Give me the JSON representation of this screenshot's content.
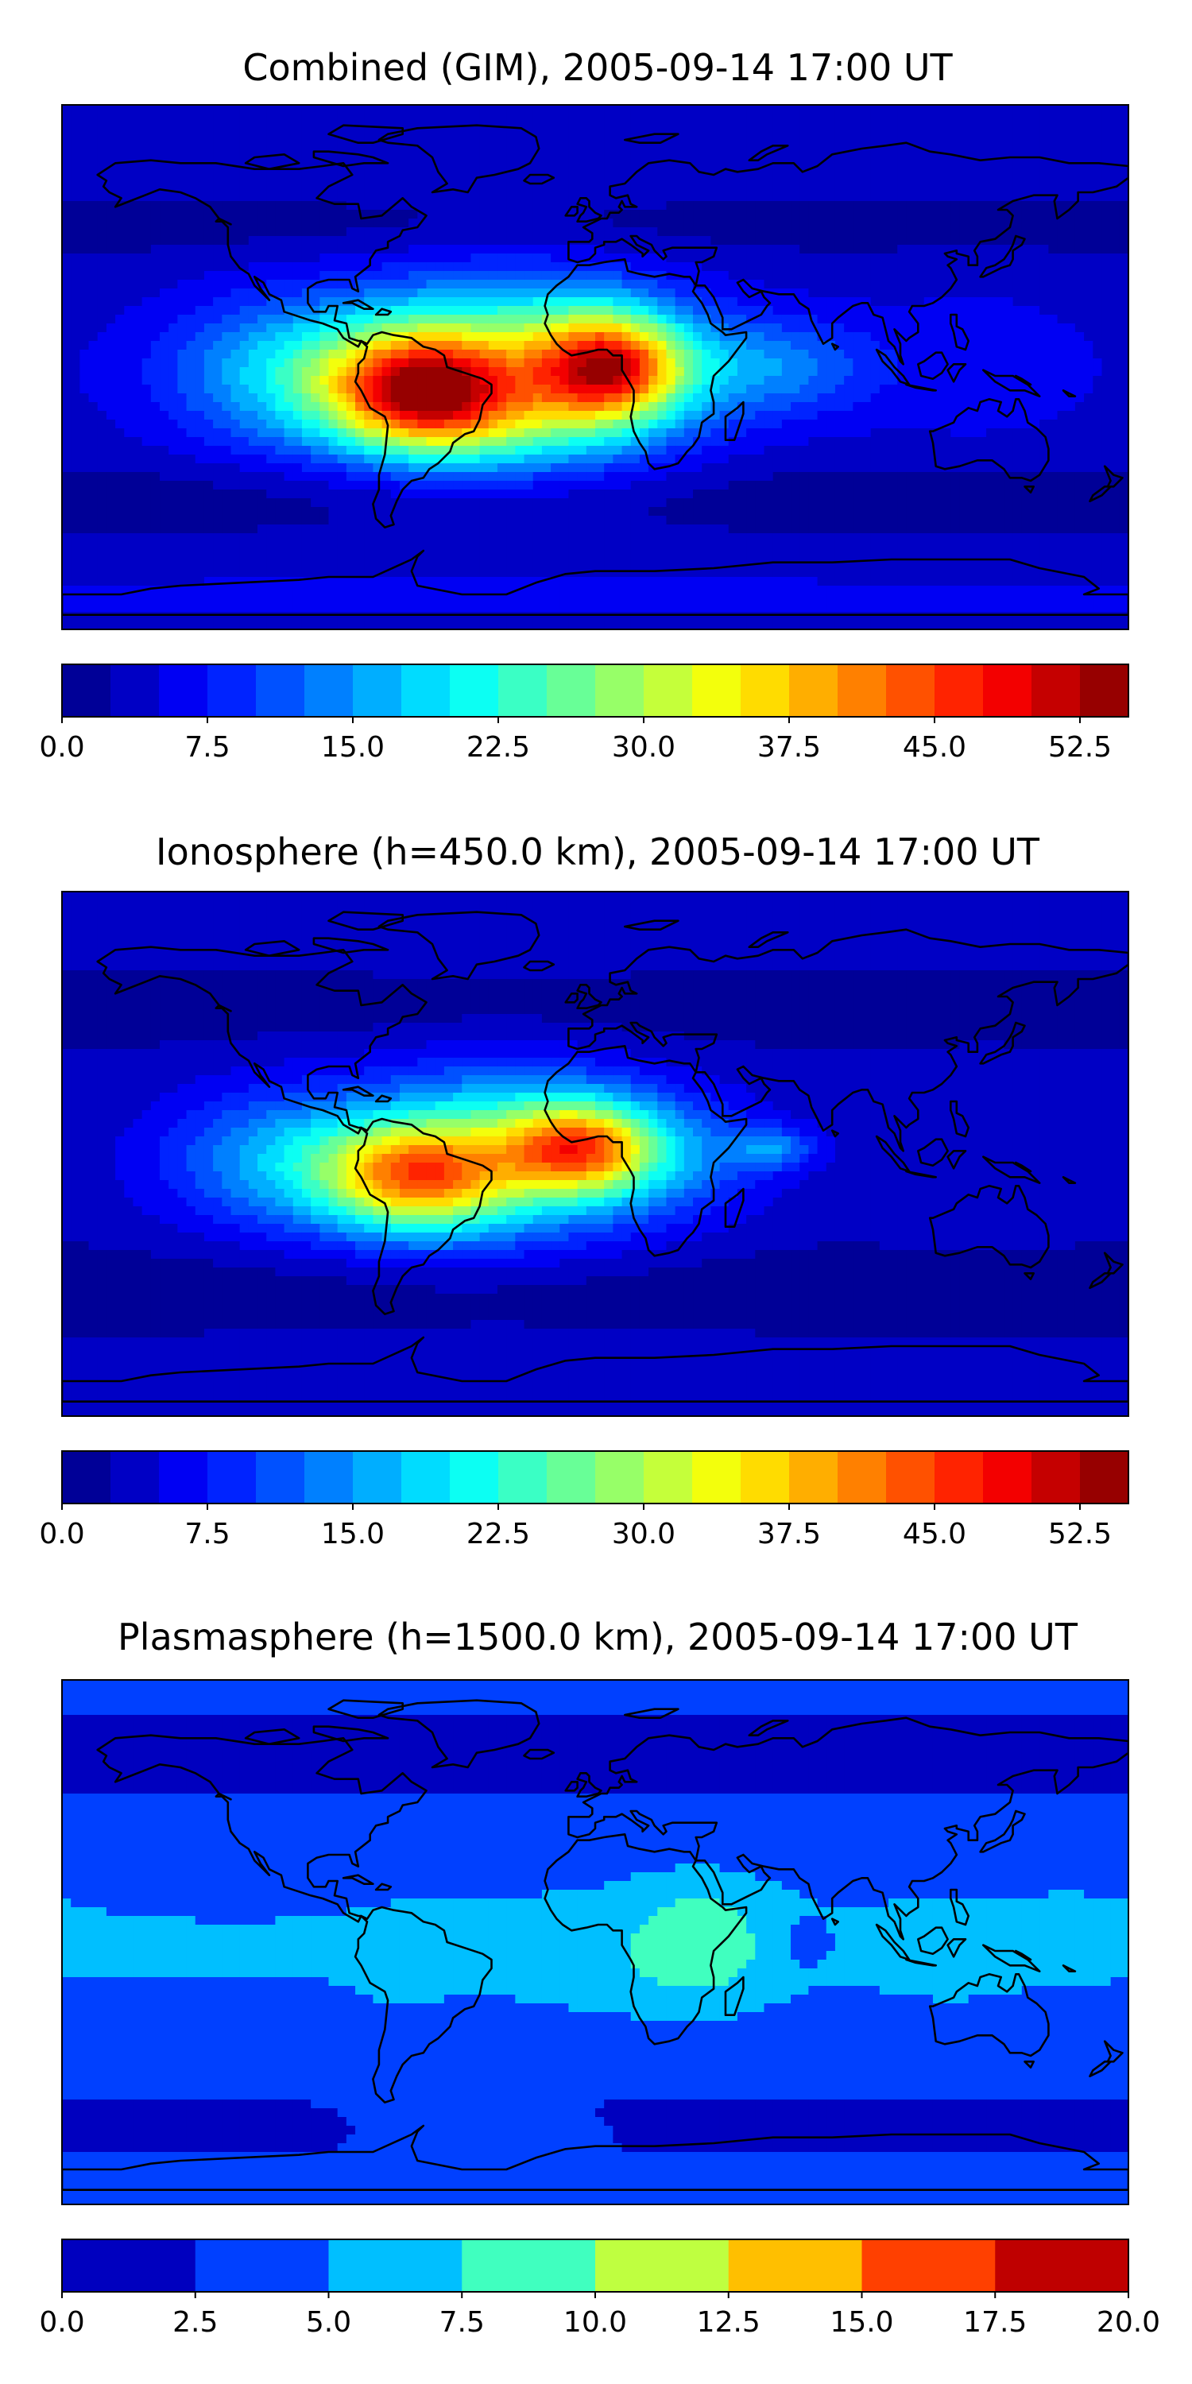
{
  "panels": [
    {
      "title": "Combined (GIM), 2005-09-14 17:00 UT",
      "colorbar_ticks": [
        "0.0",
        "7.5",
        "15.0",
        "22.5",
        "30.0",
        "37.5",
        "45.0",
        "52.5"
      ]
    },
    {
      "title": "Ionosphere  (h=450.0 km), 2005-09-14 17:00 UT",
      "colorbar_ticks": [
        "0.0",
        "7.5",
        "15.0",
        "22.5",
        "30.0",
        "37.5",
        "45.0",
        "52.5"
      ]
    },
    {
      "title": "Plasmasphere (h=1500.0 km), 2005-09-14 17:00 UT",
      "colorbar_ticks": [
        "0.0",
        "2.5",
        "5.0",
        "7.5",
        "10.0",
        "12.5",
        "15.0",
        "17.5",
        "20.0"
      ]
    }
  ],
  "chart_data": [
    {
      "type": "heatmap",
      "title": "Combined (GIM), 2005-09-14 17:00 UT",
      "map": "world coastlines, equirectangular",
      "colormap": "jet",
      "levels": [
        0,
        2.5,
        5,
        7.5,
        10,
        12.5,
        15,
        17.5,
        20,
        22.5,
        25,
        27.5,
        30,
        32.5,
        35,
        37.5,
        40,
        42.5,
        45,
        47.5,
        50,
        52.5,
        55
      ],
      "range": [
        0,
        55
      ],
      "colorbar_ticks": [
        0.0,
        7.5,
        15.0,
        22.5,
        30.0,
        37.5,
        45.0,
        52.5
      ],
      "features": [
        {
          "region": "South America (equatorial)",
          "lon": -60,
          "lat": -8,
          "value": 50
        },
        {
          "region": "West/Central Africa (equatorial)",
          "lon": 5,
          "lat": 0,
          "value": 52
        },
        {
          "region": "Asia-Pacific",
          "lon": 120,
          "lat": 0,
          "value": 6
        },
        {
          "region": "High latitudes",
          "lon": 0,
          "lat": 70,
          "value": 4
        }
      ]
    },
    {
      "type": "heatmap",
      "title": "Ionosphere  (h=450.0 km), 2005-09-14 17:00 UT",
      "map": "world coastlines, equirectangular",
      "colormap": "jet",
      "levels": [
        0,
        2.5,
        5,
        7.5,
        10,
        12.5,
        15,
        17.5,
        20,
        22.5,
        25,
        27.5,
        30,
        32.5,
        35,
        37.5,
        40,
        42.5,
        45,
        47.5,
        50,
        52.5,
        55
      ],
      "range": [
        0,
        55
      ],
      "colorbar_ticks": [
        0.0,
        7.5,
        15.0,
        22.5,
        30.0,
        37.5,
        45.0,
        52.5
      ],
      "features": [
        {
          "region": "South America (equatorial)",
          "lon": -60,
          "lat": -8,
          "value": 44
        },
        {
          "region": "West Africa (equatorial)",
          "lon": -5,
          "lat": 2,
          "value": 45
        },
        {
          "region": "Indian Ocean",
          "lon": 60,
          "lat": 2,
          "value": 20
        },
        {
          "region": "High latitudes",
          "lon": 0,
          "lat": 70,
          "value": 3
        }
      ]
    },
    {
      "type": "heatmap",
      "title": "Plasmasphere (h=1500.0 km), 2005-09-14 17:00 UT",
      "map": "world coastlines, equirectangular",
      "colormap": "jet",
      "levels": [
        0,
        2.5,
        5,
        7.5,
        10,
        12.5,
        15,
        17.5,
        20
      ],
      "range": [
        0,
        20
      ],
      "colorbar_ticks": [
        0.0,
        2.5,
        5.0,
        7.5,
        10.0,
        12.5,
        15.0,
        17.5,
        20.0
      ],
      "features": [
        {
          "region": "East Africa",
          "lon": 35,
          "lat": 0,
          "value": 8.5
        },
        {
          "region": "Equatorial band",
          "lon": 0,
          "lat": 0,
          "value": 6
        },
        {
          "region": "Indonesia",
          "lon": 120,
          "lat": -5,
          "value": 5.5
        },
        {
          "region": "High latitudes",
          "lon": 0,
          "lat": 70,
          "value": 1.5
        }
      ]
    }
  ]
}
